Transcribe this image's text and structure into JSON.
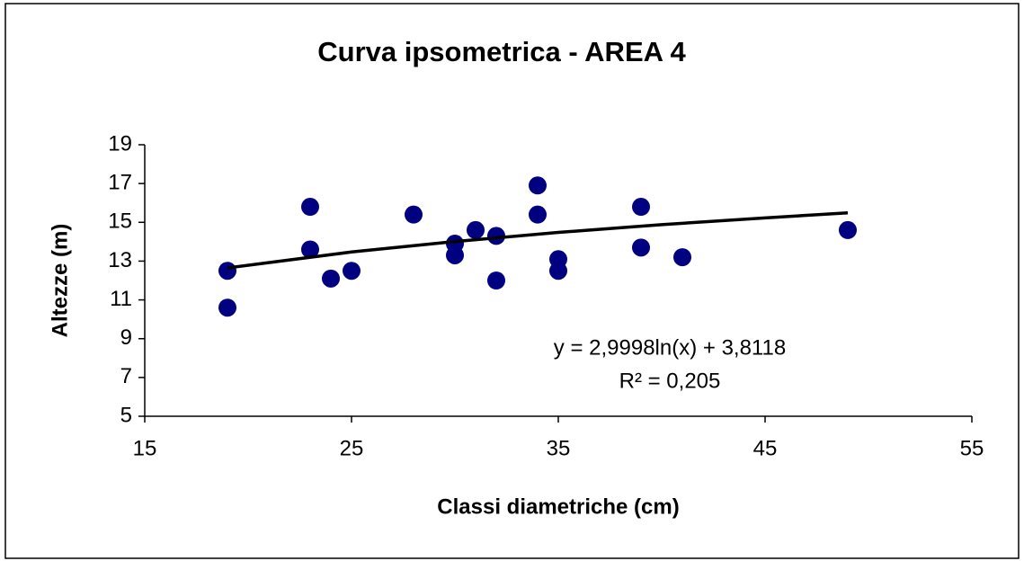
{
  "chart_data": {
    "type": "scatter",
    "title": "Curva ipsometrica - AREA 4",
    "x_label": "Classi diametriche (cm)",
    "y_label": "Altezze (m)",
    "series": [
      {
        "x": [
          19,
          19,
          23,
          23,
          24,
          25,
          28,
          30,
          30,
          31,
          32,
          32,
          34,
          34,
          35,
          35,
          39,
          39,
          41,
          49
        ],
        "values": [
          12.5,
          10.6,
          15.8,
          13.6,
          12.1,
          12.5,
          15.4,
          13.9,
          13.3,
          14.6,
          14.3,
          12.0,
          16.9,
          15.4,
          13.1,
          12.5,
          15.8,
          13.7,
          13.2,
          14.6
        ],
        "color": "#000080"
      }
    ],
    "trendline": {
      "x": [
        19,
        25,
        30,
        35,
        40,
        45,
        49
      ],
      "values": [
        12.65,
        13.47,
        14.01,
        14.48,
        14.88,
        15.23,
        15.49
      ],
      "color": "#000000"
    },
    "annotations": [
      "y = 2,9998ln(x) + 3,8118",
      "R² = 0,205"
    ],
    "xlim": [
      15,
      55
    ],
    "xticks": [
      15,
      25,
      35,
      45,
      55
    ],
    "ylim": [
      5,
      19
    ],
    "yticks": [
      5,
      7,
      9,
      11,
      13,
      15,
      17,
      19
    ]
  }
}
